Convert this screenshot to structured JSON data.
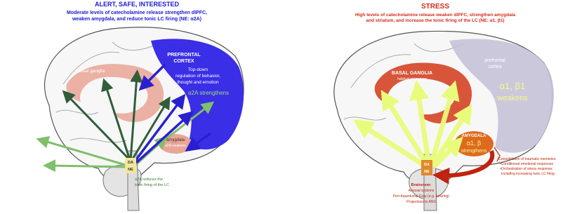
{
  "left": {
    "title": "ALERT, SAFE, INTERESTED",
    "subtitle": [
      "Moderate levels of catecholamine release strengthen dlPFC,",
      "weaken amygdala, and reduce tonic LC firing (NE: α2A)"
    ],
    "pfc_label": [
      "PREFRONTAL",
      "CORTEX"
    ],
    "pfc_desc": [
      "Top-down",
      "regulation of behavior,",
      "thought and emotion"
    ],
    "pfc_effect": "α2A strengthens",
    "basal_ganglia": "basal ganglia",
    "amygdala": "amygdala",
    "amygdala_effect": "α2A weakens",
    "da": "DA",
    "ne": "NE",
    "lc_note": [
      "α2A reduces the",
      "tonic firing of the LC"
    ]
  },
  "right": {
    "title": "STRESS",
    "subtitle": [
      "High levels of catecholamine release weaken dlPFC, strengthen amygdala",
      "and striatum, and increase the tonic firing of the LC (NE: α1, β1)"
    ],
    "basal_ganglia": "BASAL GANGLIA",
    "basal_ganglia_desc": "habitual responses",
    "pfc_label": [
      "prefrontal",
      "cortex"
    ],
    "pfc_effect": [
      "α1, β1",
      "weakens"
    ],
    "amygdala": "AMYGDALA",
    "amygdala_effect": [
      "α1, β",
      "strengthens"
    ],
    "da": "DA",
    "ne": "NE",
    "brainstem": [
      "Brainstem:",
      "Arousal systems",
      "Peri-Aqueductal Gray (e.g. freezing)",
      "Projections to ANS"
    ],
    "amygdala_outputs": [
      "•Consolidation of traumatic memories",
      "•Conditioned emotional responses",
      "•Orchestration of stress response,",
      "including increasing tonic LC firing"
    ]
  }
}
